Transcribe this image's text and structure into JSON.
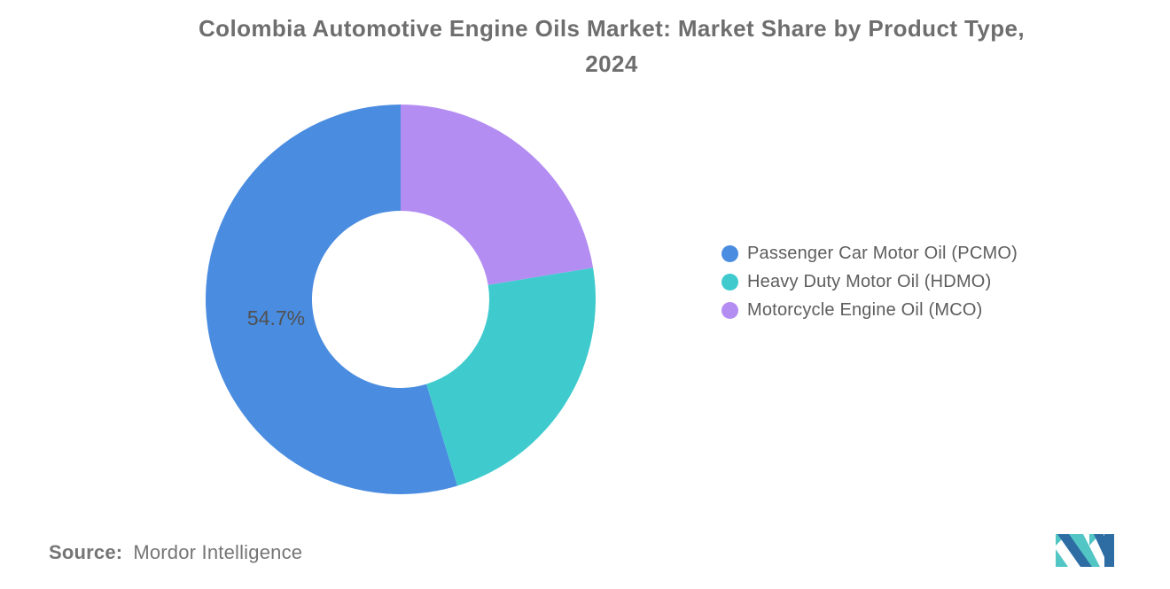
{
  "title": {
    "line1": "Colombia Automotive Engine Oils Market: Market Share by Product Type,",
    "line2": "2024"
  },
  "source": {
    "prefix": "Source:",
    "text": "Mordor Intelligence"
  },
  "logo": {
    "label": "Mordor Intelligence logo mark",
    "blue": "#2E6DA3",
    "teal": "#52C5C5"
  },
  "chart_data": {
    "type": "pie",
    "subtype": "donut",
    "title": "Colombia Automotive Engine Oils Market: Market Share by Product Type, 2024",
    "unit": "percent",
    "inner_radius_ratio": 0.455,
    "start_angle_deg": 0,
    "direction": "counter-clockwise",
    "legend_position": "right",
    "grid": false,
    "slices": [
      {
        "key": "pcmo",
        "name": "Passenger Car Motor Oil (PCMO)",
        "value": 54.7,
        "label": "54.7%",
        "color": "#4A8CE0"
      },
      {
        "key": "hdmo",
        "name": "Heavy Duty Motor Oil (HDMO)",
        "value": 22.9,
        "label": null,
        "color": "#3FCBCE",
        "note": "no data label shown; value estimated from arc angle"
      },
      {
        "key": "mco",
        "name": "Motorcycle Engine Oil (MCO)",
        "value": 22.4,
        "label": null,
        "color": "#B48DF2",
        "note": "no data label shown; value estimated from arc angle"
      }
    ]
  }
}
